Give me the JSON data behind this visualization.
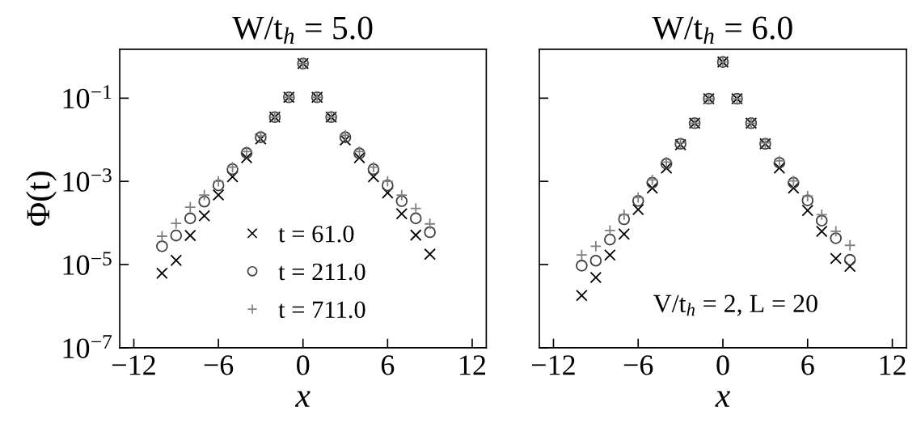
{
  "chart_data": [
    {
      "type": "scatter",
      "title": "W/t$_{h}$ = 5.0",
      "xlabel": "x",
      "ylabel": "Φ(t)",
      "x": [
        -10,
        -9,
        -8,
        -7,
        -6,
        -5,
        -4,
        -3,
        -2,
        -1,
        0,
        1,
        2,
        3,
        4,
        5,
        6,
        7,
        8,
        9
      ],
      "series": [
        {
          "name": "t = 61.0",
          "color": "#000000",
          "marker": "cross",
          "values": [
            6.2e-06,
            1.26e-05,
            5e-05,
            0.000149,
            0.00047,
            0.00129,
            0.0037,
            0.0105,
            0.035,
            0.105,
            0.68,
            0.105,
            0.035,
            0.0099,
            0.0037,
            0.00129,
            0.00053,
            0.000166,
            5.1e-05,
            1.78e-05
          ]
        },
        {
          "name": "t = 211.0",
          "color": "#404040",
          "marker": "circle",
          "values": [
            2.75e-05,
            5e-05,
            0.000129,
            0.000326,
            0.0008,
            0.00197,
            0.0048,
            0.0115,
            0.035,
            0.105,
            0.68,
            0.105,
            0.035,
            0.0115,
            0.0047,
            0.00197,
            0.0008,
            0.000336,
            0.000129,
            6e-05
          ]
        },
        {
          "name": "t = 711.0",
          "color": "#808080",
          "marker": "plus",
          "values": [
            4.8e-05,
            9.8e-05,
            0.00024,
            0.00047,
            0.001,
            0.0022,
            0.0052,
            0.0123,
            0.035,
            0.105,
            0.68,
            0.105,
            0.035,
            0.0128,
            0.0052,
            0.0022,
            0.001,
            0.00047,
            0.000224,
            9.5e-05
          ]
        }
      ],
      "xlim": [
        -13,
        13
      ],
      "xticks": [
        -12,
        -6,
        0,
        6,
        12
      ],
      "ylim": [
        1e-07,
        1.5
      ],
      "yticks": [
        {
          "value": 0.1,
          "label": "10$^{−1}$"
        },
        {
          "value": 0.001,
          "label": "10$^{−3}$"
        },
        {
          "value": 1e-05,
          "label": "10$^{−5}$"
        },
        {
          "value": 1e-07,
          "label": "10$^{−7}$"
        }
      ],
      "log": "y",
      "legend": "bottom"
    },
    {
      "type": "scatter",
      "title": "W/t$_{h}$ = 6.0",
      "xlabel": "x",
      "x": [
        -10,
        -9,
        -8,
        -7,
        -6,
        -5,
        -4,
        -3,
        -2,
        -1,
        0,
        1,
        2,
        3,
        4,
        5,
        6,
        7,
        8,
        9
      ],
      "series": [
        {
          "color": "#000000",
          "marker": "cross",
          "values": [
            1.8e-06,
            4.9e-06,
            1.7e-05,
            5.4e-05,
            0.00021,
            0.00069,
            0.0021,
            0.0076,
            0.025,
            0.097,
            0.74,
            0.097,
            0.025,
            0.008,
            0.0021,
            0.00069,
            0.0002,
            6.3e-05,
            1.4e-05,
            9.1e-06
          ]
        },
        {
          "color": "#404040",
          "marker": "circle",
          "values": [
            9.4e-06,
            1.24e-05,
            4e-05,
            0.000123,
            0.00034,
            0.00093,
            0.00265,
            0.008,
            0.025,
            0.097,
            0.74,
            0.097,
            0.025,
            0.008,
            0.0028,
            0.00093,
            0.00035,
            0.000114,
            4.3e-05,
            1.3e-05
          ]
        },
        {
          "color": "#808080",
          "marker": "plus",
          "values": [
            1.7e-05,
            2.75e-05,
            6.6e-05,
            0.000158,
            0.00041,
            0.00108,
            0.0029,
            0.0084,
            0.025,
            0.097,
            0.74,
            0.097,
            0.025,
            0.0084,
            0.0031,
            0.00103,
            0.00044,
            0.000158,
            6.3e-05,
            2.9e-05
          ]
        }
      ],
      "xlim": [
        -13,
        13
      ],
      "xticks": [
        -12,
        -6,
        0,
        6,
        12
      ],
      "ylim": [
        1e-07,
        1.5
      ],
      "yticks": [
        0.1,
        0.001,
        1e-05,
        1e-07
      ],
      "log": "y",
      "tick_labels": "x",
      "annotations": [
        "V/t$_{h}$ = 2, L = 20"
      ]
    }
  ]
}
